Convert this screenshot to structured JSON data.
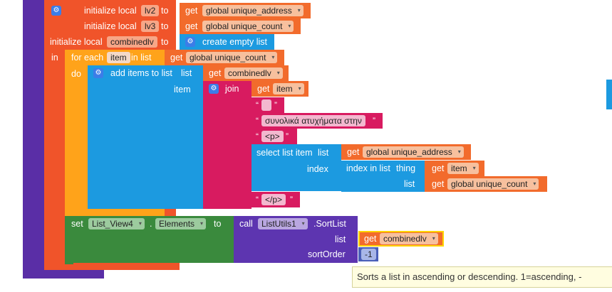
{
  "blocks": {
    "init_lv2": {
      "label": "initialize local",
      "var": "lv2",
      "to": "to",
      "get": "get",
      "value": "global unique_address"
    },
    "init_lv3": {
      "label": "initialize local",
      "var": "lv3",
      "to": "to",
      "get": "get",
      "value": "global unique_count"
    },
    "init_combined": {
      "label": "initialize local",
      "var": "combinedlv",
      "to": "to",
      "create": "create empty list"
    },
    "in_label": "in",
    "foreach": {
      "label": "for each",
      "var": "item",
      "in_list": "in list",
      "get": "get",
      "value": "global unique_count"
    },
    "do_label": "do",
    "add_items": {
      "label": "add items to list",
      "list_label": "list",
      "get": "get",
      "list_value": "combinedlv",
      "item_label": "item"
    },
    "join": {
      "label": "join",
      "get": "get",
      "item_value": "item"
    },
    "strings": {
      "s1": "",
      "s2": "συνολικά ατυχήματα στην",
      "s3": "<p>",
      "s4": "</p>"
    },
    "select_item": {
      "label": "select list item",
      "list_label": "list",
      "get": "get",
      "list_value": "global unique_address",
      "index_label": "index"
    },
    "index_in_list": {
      "label": "index in list",
      "thing_label": "thing",
      "get": "get",
      "thing_value": "item",
      "list_label": "list",
      "list_value": "global unique_count"
    },
    "set": {
      "label": "set",
      "component": "List_View4",
      "dot": ".",
      "property": "Elements",
      "to": "to"
    },
    "call": {
      "label": "call",
      "component": "ListUtils1",
      "method": ".SortList",
      "list_label": "list",
      "get": "get",
      "list_value": "combinedlv",
      "sort_label": "sortOrder",
      "sort_value": "-1"
    }
  },
  "tooltip": "Sorts a list in ascending or descending. 1=ascending, -",
  "icons": {
    "gear": "gear-icon",
    "dropdown": "dropdown-arrow-icon"
  }
}
